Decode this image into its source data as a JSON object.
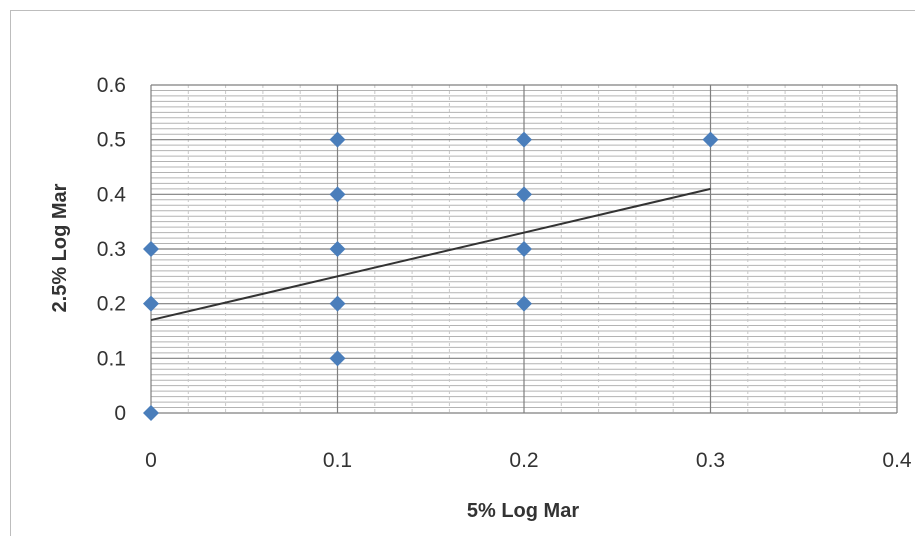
{
  "chart_data": {
    "type": "scatter",
    "xlabel": "5% Log Mar",
    "ylabel": "2.5% Log Mar",
    "xlim": [
      0,
      0.4
    ],
    "ylim": [
      0,
      0.6
    ],
    "x_ticks": [
      "0",
      "0.1",
      "0.2",
      "0.3",
      "0.4"
    ],
    "y_ticks": [
      "0",
      "0.1",
      "0.2",
      "0.3",
      "0.4",
      "0.5",
      "0.6"
    ],
    "points": [
      {
        "x": 0,
        "y": 0
      },
      {
        "x": 0,
        "y": 0.2
      },
      {
        "x": 0,
        "y": 0.3
      },
      {
        "x": 0.1,
        "y": 0.1
      },
      {
        "x": 0.1,
        "y": 0.2
      },
      {
        "x": 0.1,
        "y": 0.3
      },
      {
        "x": 0.1,
        "y": 0.4
      },
      {
        "x": 0.1,
        "y": 0.5
      },
      {
        "x": 0.2,
        "y": 0.2
      },
      {
        "x": 0.2,
        "y": 0.3
      },
      {
        "x": 0.2,
        "y": 0.4
      },
      {
        "x": 0.2,
        "y": 0.5
      },
      {
        "x": 0.3,
        "y": 0.5
      }
    ],
    "trendline": {
      "x": [
        0,
        0.3
      ],
      "y": [
        0.17,
        0.41
      ]
    },
    "grid": true,
    "legend": "none",
    "marker": "diamond",
    "marker_color": "#4a7ebb",
    "trendline_color": "#333333"
  }
}
